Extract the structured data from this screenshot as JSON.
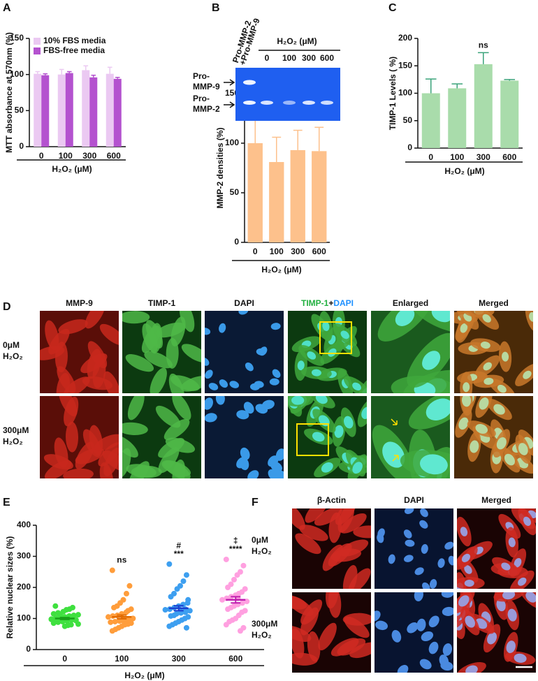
{
  "panels": [
    "A",
    "B",
    "C",
    "D",
    "E",
    "F"
  ],
  "chart_data": [
    {
      "type": "bar",
      "ylabel": "MTT absorbance at 570nm (%)",
      "xlabel": "H₂O₂ (μM)",
      "categories": [
        "0",
        "100",
        "300",
        "600"
      ],
      "series": [
        {
          "name": "10% FBS media",
          "color": "#ebc9f2",
          "values": [
            101,
            100,
            106,
            101
          ],
          "errors": [
            3,
            7,
            6,
            9
          ]
        },
        {
          "name": "FBS-free media",
          "color": "#b452cf",
          "values": [
            99,
            102,
            96,
            94
          ],
          "errors": [
            2,
            2,
            3,
            2
          ]
        }
      ],
      "ylim": [
        0,
        150
      ],
      "yticks": [
        0,
        50,
        100,
        150
      ],
      "legend": "upper left"
    },
    {
      "type": "bar",
      "ylabel": "MMP-2  densities (%)",
      "xlabel": "H₂O₂ (μM)",
      "categories": [
        "0",
        "100",
        "300",
        "600"
      ],
      "series": [
        {
          "color": "#fdc18c",
          "values": [
            100,
            81,
            93,
            92
          ],
          "errors": [
            36,
            25,
            20,
            24
          ]
        }
      ],
      "ylim": [
        0,
        150
      ],
      "yticks": [
        0,
        50,
        100,
        150
      ]
    },
    {
      "type": "bar",
      "ylabel": "TIMP-1 Levels  ( %)",
      "xlabel": "H₂O₂ (μM)",
      "categories": [
        "0",
        "100",
        "300",
        "600"
      ],
      "series": [
        {
          "color": "#a9dcab",
          "error_color": "#3aa37a",
          "values": [
            100,
            109,
            153,
            123
          ],
          "errors": [
            26,
            8,
            21,
            2
          ]
        }
      ],
      "ylim": [
        0,
        200
      ],
      "yticks": [
        0,
        50,
        100,
        150,
        200
      ],
      "annotations": [
        {
          "category": "300",
          "lines": [
            "ns"
          ]
        }
      ]
    },
    {
      "type": "scatter",
      "ylabel": "Relative nuclear sizes (%)",
      "xlabel": "H₂O₂ (μM)",
      "categories": [
        "0",
        "100",
        "300",
        "600"
      ],
      "series": [
        {
          "color": "#3fe03f",
          "mean_color": "#19a019",
          "mean": 100,
          "sem": 3,
          "values": [
            140,
            135,
            130,
            128,
            122,
            118,
            115,
            112,
            110,
            108,
            105,
            103,
            100,
            98,
            96,
            95,
            92,
            90,
            88,
            85,
            82,
            80,
            78,
            75,
            110,
            102,
            97,
            93
          ]
        },
        {
          "color": "#ff9d3b",
          "mean_color": "#e06a00",
          "mean": 105,
          "sem": 6,
          "values": [
            255,
            205,
            180,
            160,
            150,
            140,
            135,
            130,
            125,
            120,
            115,
            110,
            108,
            105,
            100,
            98,
            95,
            92,
            90,
            88,
            85,
            82,
            80,
            75,
            70,
            65,
            60,
            100,
            95,
            90
          ]
        },
        {
          "color": "#3d9ff0",
          "mean_color": "#1a3fd0",
          "mean": 133,
          "sem": 8,
          "values": [
            275,
            240,
            220,
            205,
            195,
            180,
            170,
            160,
            150,
            145,
            140,
            135,
            130,
            128,
            125,
            120,
            118,
            115,
            110,
            108,
            105,
            100,
            95,
            90,
            85,
            80,
            75,
            70,
            130,
            122
          ]
        },
        {
          "color": "#ffa0e0",
          "mean_color": "#c020b0",
          "mean": 160,
          "sem": 10,
          "values": [
            290,
            270,
            250,
            240,
            225,
            210,
            200,
            195,
            185,
            180,
            175,
            170,
            165,
            160,
            155,
            150,
            145,
            140,
            135,
            130,
            125,
            120,
            110,
            100,
            95,
            90,
            80,
            70,
            60,
            165
          ]
        }
      ],
      "ylim": [
        0,
        400
      ],
      "yticks": [
        0,
        100,
        200,
        300,
        400
      ],
      "annotations": [
        {
          "category": "100",
          "lines": [
            "ns"
          ]
        },
        {
          "category": "300",
          "lines": [
            "#",
            "***"
          ]
        },
        {
          "category": "600",
          "lines": [
            "‡",
            "****"
          ]
        }
      ]
    }
  ],
  "gel": {
    "lane_header": [
      "Pro-MMP-2",
      "+Pro-MMP-9"
    ],
    "treatment_label": "H₂O₂ (μM)",
    "lanes": [
      "0",
      "100",
      "300",
      "600"
    ],
    "band_labels": [
      [
        "Pro-",
        "MMP-9"
      ],
      [
        "Pro-",
        "MMP-2"
      ]
    ]
  },
  "micrographs_D": {
    "headers": [
      "MMP-9",
      "TIMP-1",
      "DAPI",
      [
        "TIMP-1",
        "+",
        "DAPI"
      ],
      "Enlarged",
      "Merged"
    ],
    "rows": [
      [
        "0μM",
        "H₂O₂"
      ],
      [
        "300μM",
        "H₂O₂"
      ]
    ]
  },
  "micrographs_F": {
    "headers": [
      "β-Actin",
      "DAPI",
      "Merged"
    ],
    "rows": [
      [
        "0μM",
        "H₂O₂"
      ],
      [
        "300μM",
        "H₂O₂"
      ]
    ]
  }
}
